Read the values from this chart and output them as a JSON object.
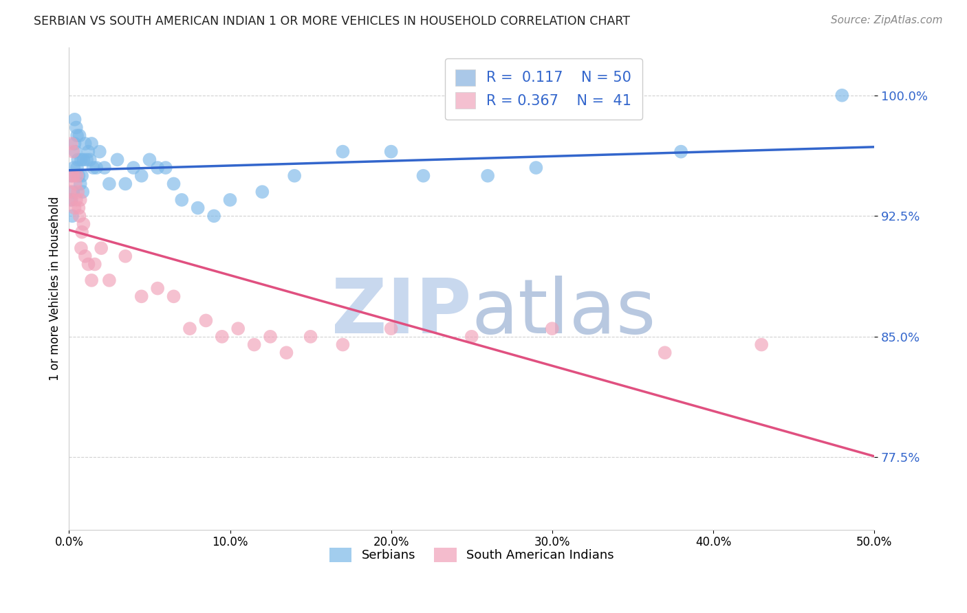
{
  "title": "SERBIAN VS SOUTH AMERICAN INDIAN 1 OR MORE VEHICLES IN HOUSEHOLD CORRELATION CHART",
  "source": "Source: ZipAtlas.com",
  "xlabel": "",
  "ylabel": "1 or more Vehicles in Household",
  "xlim": [
    0.0,
    50.0
  ],
  "ylim": [
    73.0,
    103.0
  ],
  "yticks": [
    77.5,
    85.0,
    92.5,
    100.0
  ],
  "xticks": [
    0.0,
    10.0,
    20.0,
    30.0,
    40.0,
    50.0
  ],
  "blue_R": 0.117,
  "blue_N": 50,
  "pink_R": 0.367,
  "pink_N": 41,
  "blue_color": "#7bb8e8",
  "pink_color": "#f0a0b8",
  "blue_line_color": "#3366cc",
  "pink_line_color": "#e05080",
  "legend_box_blue": "#aac8e8",
  "legend_box_pink": "#f4c0d0",
  "watermark_zip": "ZIP",
  "watermark_atlas": "atlas",
  "watermark_color_zip": "#c8d8ee",
  "watermark_color_atlas": "#b8c8e0",
  "blue_x": [
    0.1,
    0.15,
    0.2,
    0.25,
    0.3,
    0.35,
    0.35,
    0.4,
    0.45,
    0.5,
    0.5,
    0.55,
    0.6,
    0.65,
    0.7,
    0.75,
    0.8,
    0.85,
    0.9,
    1.0,
    1.1,
    1.2,
    1.3,
    1.4,
    1.5,
    1.7,
    1.9,
    2.2,
    2.5,
    3.0,
    3.5,
    4.0,
    4.5,
    5.0,
    5.5,
    6.0,
    6.5,
    7.0,
    8.0,
    9.0,
    10.0,
    12.0,
    14.0,
    17.0,
    20.0,
    22.0,
    26.0,
    29.0,
    38.0,
    48.0
  ],
  "blue_y": [
    95.0,
    93.5,
    92.5,
    94.0,
    95.5,
    97.0,
    98.5,
    96.5,
    98.0,
    95.5,
    97.5,
    96.0,
    95.0,
    97.5,
    94.5,
    96.0,
    95.0,
    94.0,
    96.0,
    97.0,
    96.0,
    96.5,
    96.0,
    97.0,
    95.5,
    95.5,
    96.5,
    95.5,
    94.5,
    96.0,
    94.5,
    95.5,
    95.0,
    96.0,
    95.5,
    95.5,
    94.5,
    93.5,
    93.0,
    92.5,
    93.5,
    94.0,
    95.0,
    96.5,
    96.5,
    95.0,
    95.0,
    95.5,
    96.5,
    100.0
  ],
  "pink_x": [
    0.05,
    0.1,
    0.15,
    0.2,
    0.25,
    0.3,
    0.35,
    0.4,
    0.45,
    0.5,
    0.55,
    0.6,
    0.65,
    0.7,
    0.75,
    0.8,
    0.9,
    1.0,
    1.2,
    1.4,
    1.6,
    2.0,
    2.5,
    3.5,
    4.5,
    5.5,
    6.5,
    7.5,
    8.5,
    9.5,
    10.5,
    11.5,
    12.5,
    13.5,
    15.0,
    17.0,
    20.0,
    25.0,
    30.0,
    37.0,
    43.0
  ],
  "pink_y": [
    94.0,
    93.5,
    97.0,
    95.0,
    96.5,
    95.0,
    93.0,
    94.5,
    93.5,
    95.0,
    94.0,
    93.0,
    92.5,
    93.5,
    90.5,
    91.5,
    92.0,
    90.0,
    89.5,
    88.5,
    89.5,
    90.5,
    88.5,
    90.0,
    87.5,
    88.0,
    87.5,
    85.5,
    86.0,
    85.0,
    85.5,
    84.5,
    85.0,
    84.0,
    85.0,
    84.5,
    85.5,
    85.0,
    85.5,
    84.0,
    84.5
  ]
}
